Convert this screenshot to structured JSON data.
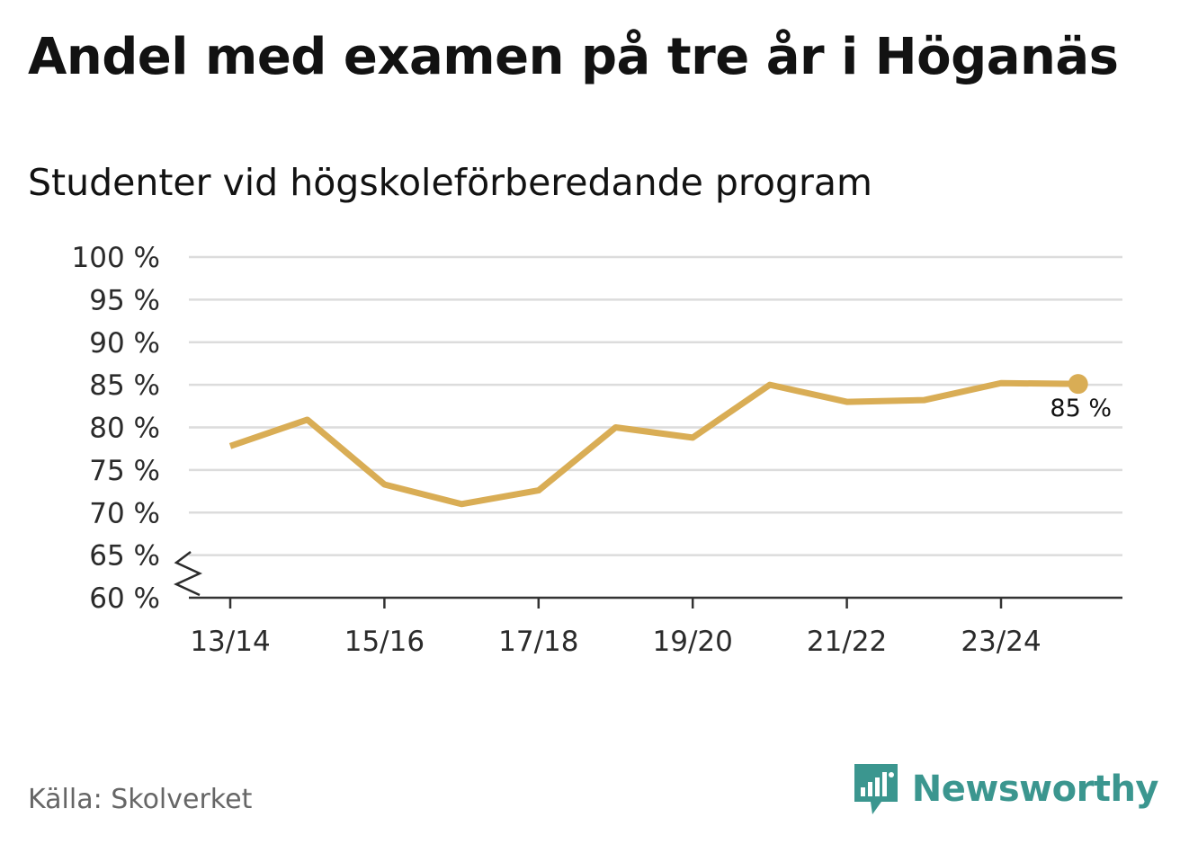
{
  "title": "Andel med examen på tre år i Höganäs",
  "subtitle": "Studenter vid högskoleförberedande program",
  "source": "Källa: Skolverket",
  "brand": {
    "name": "Newsworthy",
    "icon": "bar-chart-speech-bubble-icon",
    "color": "#3b968f"
  },
  "chart_data": {
    "type": "line",
    "title": "Andel med examen på tre år i Höganäs",
    "subtitle": "Studenter vid högskoleförberedande program",
    "x": [
      "13/14",
      "14/15",
      "15/16",
      "16/17",
      "17/18",
      "18/19",
      "19/20",
      "20/21",
      "21/22",
      "22/23",
      "23/24",
      "24/25"
    ],
    "x_tick_labels": [
      "13/14",
      "15/16",
      "17/18",
      "19/20",
      "21/22",
      "23/24"
    ],
    "series": [
      {
        "values": [
          77.8,
          80.9,
          73.3,
          71.0,
          72.6,
          80.0,
          78.8,
          85.0,
          83.0,
          83.2,
          85.2,
          85.1
        ],
        "color": "#d9ad55"
      }
    ],
    "y_ticks": [
      60,
      65,
      70,
      75,
      80,
      85,
      90,
      95,
      100
    ],
    "y_tick_labels": [
      "60 %",
      "65 %",
      "70 %",
      "75 %",
      "80 %",
      "85 %",
      "90 %",
      "95 %",
      "100 %"
    ],
    "ylim": [
      60,
      100
    ],
    "axis_break": true,
    "grid": true,
    "end_label": "85 %"
  }
}
